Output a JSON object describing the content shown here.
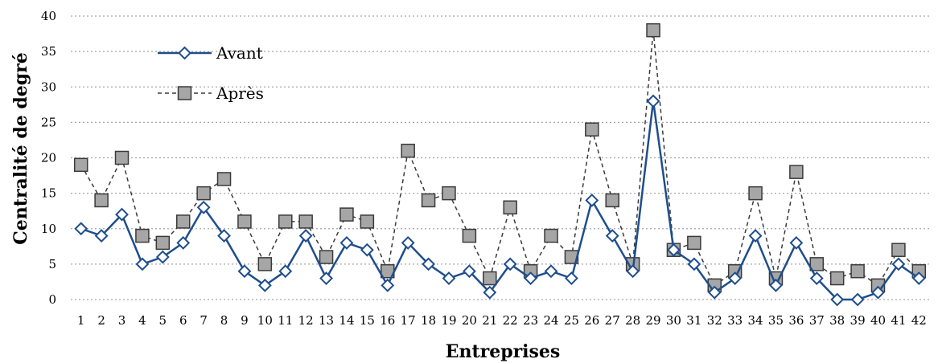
{
  "chart_data": {
    "type": "line",
    "xlabel": "Entreprises",
    "ylabel": "Centralité de degré",
    "ylim": [
      0,
      40
    ],
    "yticks": [
      0,
      5,
      10,
      15,
      20,
      25,
      30,
      35,
      40
    ],
    "grid": true,
    "legend_position": "top-left",
    "categories": [
      "1",
      "2",
      "3",
      "4",
      "5",
      "6",
      "7",
      "8",
      "9",
      "10",
      "11",
      "12",
      "13",
      "14",
      "15",
      "16",
      "17",
      "18",
      "19",
      "20",
      "21",
      "22",
      "23",
      "24",
      "25",
      "26",
      "27",
      "28",
      "29",
      "30",
      "31",
      "32",
      "33",
      "34",
      "35",
      "36",
      "37",
      "38",
      "39",
      "40",
      "41",
      "42"
    ],
    "series": [
      {
        "name": "Avant",
        "color": "#1f4e8c",
        "marker": "diamond",
        "line_style": "solid",
        "values": [
          10,
          9,
          12,
          5,
          6,
          8,
          13,
          9,
          4,
          2,
          4,
          9,
          3,
          8,
          7,
          2,
          8,
          5,
          3,
          4,
          1,
          5,
          3,
          4,
          3,
          14,
          9,
          4,
          28,
          7,
          5,
          1,
          3,
          9,
          2,
          8,
          3,
          0,
          0,
          1,
          5,
          3
        ]
      },
      {
        "name": "Après",
        "color": "#3a3a3a",
        "marker": "square",
        "marker_fill": "#a6a6a6",
        "line_style": "dashed",
        "values": [
          19,
          14,
          20,
          9,
          8,
          11,
          15,
          17,
          11,
          5,
          11,
          11,
          6,
          12,
          11,
          4,
          21,
          14,
          15,
          9,
          3,
          13,
          4,
          9,
          6,
          24,
          14,
          5,
          38,
          7,
          8,
          2,
          4,
          15,
          3,
          18,
          5,
          3,
          4,
          2,
          7,
          4
        ]
      }
    ]
  }
}
